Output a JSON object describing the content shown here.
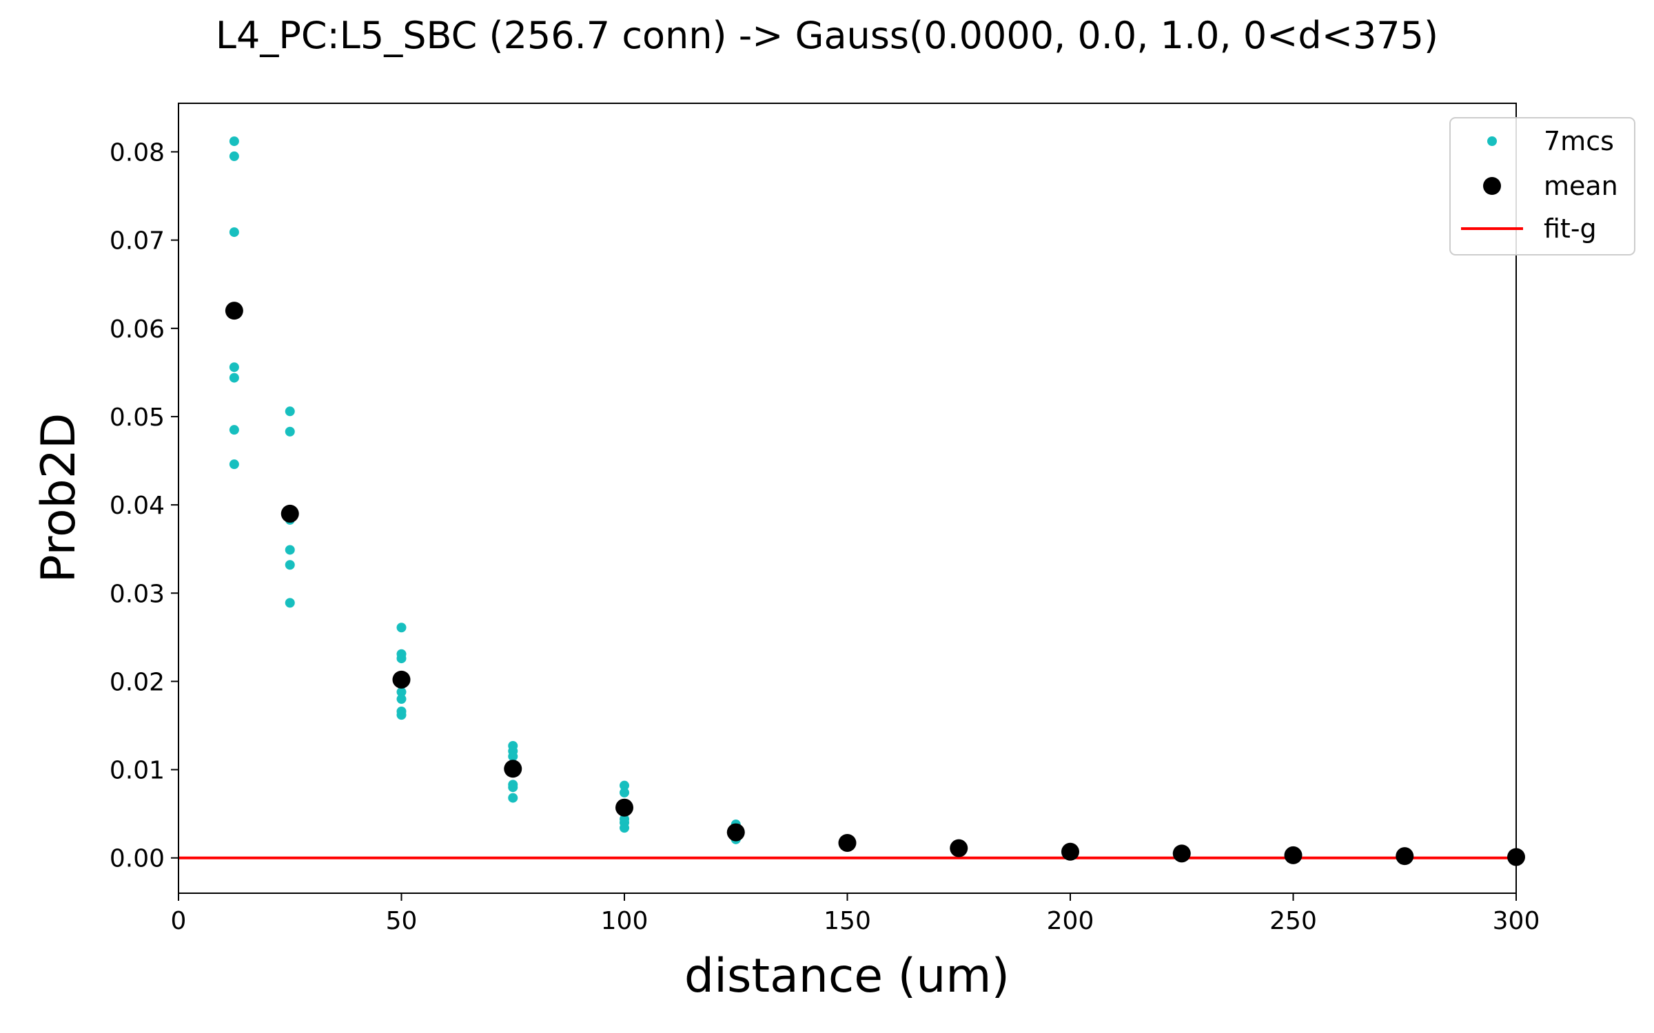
{
  "chart_data": {
    "type": "scatter",
    "title": "L4_PC:L5_SBC (256.7 conn) -> Gauss(0.0000, 0.0, 1.0, 0<d<375)",
    "xlabel": "distance (um)",
    "ylabel": "Prob2D",
    "xlim": [
      0,
      300
    ],
    "ylim": [
      -0.004,
      0.0855
    ],
    "xticks": [
      0,
      50,
      100,
      150,
      200,
      250,
      300
    ],
    "xtick_labels": [
      "0",
      "50",
      "100",
      "150",
      "200",
      "250",
      "300"
    ],
    "yticks": [
      0.0,
      0.01,
      0.02,
      0.03,
      0.04,
      0.05,
      0.06,
      0.07,
      0.08
    ],
    "ytick_labels": [
      "0.00",
      "0.01",
      "0.02",
      "0.03",
      "0.04",
      "0.05",
      "0.06",
      "0.07",
      "0.08"
    ],
    "grid": false,
    "legend_position": "top-right",
    "series": [
      {
        "name": "7mcs",
        "kind": "points",
        "color": "#17bfbf",
        "points": [
          [
            12.5,
            0.0812
          ],
          [
            12.5,
            0.0795
          ],
          [
            12.5,
            0.0709
          ],
          [
            12.5,
            0.0556
          ],
          [
            12.5,
            0.0544
          ],
          [
            12.5,
            0.0485
          ],
          [
            12.5,
            0.0446
          ],
          [
            25,
            0.0506
          ],
          [
            25,
            0.0483
          ],
          [
            25,
            0.0383
          ],
          [
            25,
            0.0349
          ],
          [
            25,
            0.0332
          ],
          [
            25,
            0.0289
          ],
          [
            50,
            0.0261
          ],
          [
            50,
            0.0231
          ],
          [
            50,
            0.0226
          ],
          [
            50,
            0.0188
          ],
          [
            50,
            0.018
          ],
          [
            50,
            0.0166
          ],
          [
            50,
            0.0162
          ],
          [
            75,
            0.0127
          ],
          [
            75,
            0.0121
          ],
          [
            75,
            0.0115
          ],
          [
            75,
            0.0083
          ],
          [
            75,
            0.008
          ],
          [
            75,
            0.0068
          ],
          [
            100,
            0.0082
          ],
          [
            100,
            0.0074
          ],
          [
            100,
            0.0058
          ],
          [
            100,
            0.0044
          ],
          [
            100,
            0.004
          ],
          [
            100,
            0.0034
          ],
          [
            125,
            0.0038
          ],
          [
            125,
            0.0032
          ],
          [
            125,
            0.0028
          ],
          [
            125,
            0.0024
          ],
          [
            125,
            0.0021
          ]
        ]
      },
      {
        "name": "mean",
        "kind": "points",
        "color": "#000000",
        "points": [
          [
            12.5,
            0.062
          ],
          [
            25,
            0.039
          ],
          [
            50,
            0.0202
          ],
          [
            75,
            0.0101
          ],
          [
            100,
            0.0057
          ],
          [
            125,
            0.0029
          ],
          [
            150,
            0.0017
          ],
          [
            175,
            0.0011
          ],
          [
            200,
            0.0007
          ],
          [
            225,
            0.0005
          ],
          [
            250,
            0.0003
          ],
          [
            275,
            0.0002
          ],
          [
            300,
            0.0001
          ]
        ]
      },
      {
        "name": "fit-g",
        "kind": "line",
        "color": "#ff0000",
        "points": [
          [
            0,
            0.0
          ],
          [
            300,
            0.0
          ]
        ]
      }
    ]
  }
}
